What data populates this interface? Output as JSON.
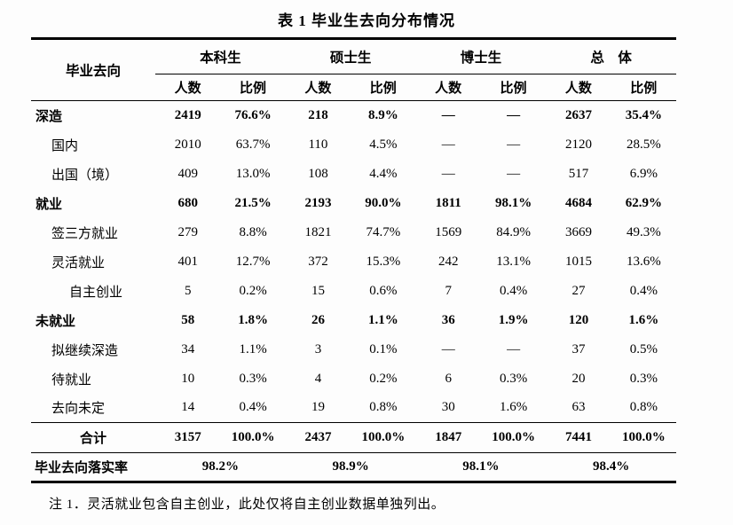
{
  "title": "表 1 毕业生去向分布情况",
  "table": {
    "corner_header": "毕业去向",
    "groups": [
      {
        "label": "本科生"
      },
      {
        "label": "硕士生"
      },
      {
        "label": "博士生"
      },
      {
        "label": "总　体"
      }
    ],
    "subheaders": [
      "人数",
      "比例"
    ],
    "rows": [
      {
        "label": "深造",
        "bold": true,
        "indent": 0,
        "values": [
          "2419",
          "76.6%",
          "218",
          "8.9%",
          "—",
          "—",
          "2637",
          "35.4%"
        ]
      },
      {
        "label": "国内",
        "bold": false,
        "indent": 1,
        "values": [
          "2010",
          "63.7%",
          "110",
          "4.5%",
          "—",
          "—",
          "2120",
          "28.5%"
        ]
      },
      {
        "label": "出国（境）",
        "bold": false,
        "indent": 1,
        "values": [
          "409",
          "13.0%",
          "108",
          "4.4%",
          "—",
          "—",
          "517",
          "6.9%"
        ]
      },
      {
        "label": "就业",
        "bold": true,
        "indent": 0,
        "values": [
          "680",
          "21.5%",
          "2193",
          "90.0%",
          "1811",
          "98.1%",
          "4684",
          "62.9%"
        ]
      },
      {
        "label": "签三方就业",
        "bold": false,
        "indent": 1,
        "values": [
          "279",
          "8.8%",
          "1821",
          "74.7%",
          "1569",
          "84.9%",
          "3669",
          "49.3%"
        ]
      },
      {
        "label": "灵活就业",
        "bold": false,
        "indent": 1,
        "values": [
          "401",
          "12.7%",
          "372",
          "15.3%",
          "242",
          "13.1%",
          "1015",
          "13.6%"
        ]
      },
      {
        "label": "自主创业",
        "bold": false,
        "indent": 2,
        "values": [
          "5",
          "0.2%",
          "15",
          "0.6%",
          "7",
          "0.4%",
          "27",
          "0.4%"
        ]
      },
      {
        "label": "未就业",
        "bold": true,
        "indent": 0,
        "values": [
          "58",
          "1.8%",
          "26",
          "1.1%",
          "36",
          "1.9%",
          "120",
          "1.6%"
        ]
      },
      {
        "label": "拟继续深造",
        "bold": false,
        "indent": 1,
        "values": [
          "34",
          "1.1%",
          "3",
          "0.1%",
          "—",
          "—",
          "37",
          "0.5%"
        ]
      },
      {
        "label": "待就业",
        "bold": false,
        "indent": 1,
        "values": [
          "10",
          "0.3%",
          "4",
          "0.2%",
          "6",
          "0.3%",
          "20",
          "0.3%"
        ]
      },
      {
        "label": "去向未定",
        "bold": false,
        "indent": 1,
        "values": [
          "14",
          "0.4%",
          "19",
          "0.8%",
          "30",
          "1.6%",
          "63",
          "0.8%"
        ]
      }
    ],
    "total_row": {
      "label": "合计",
      "values": [
        "3157",
        "100.0%",
        "2437",
        "100.0%",
        "1847",
        "100.0%",
        "7441",
        "100.0%"
      ]
    },
    "rate_row": {
      "label": "毕业去向落实率",
      "values": [
        "98.2%",
        "98.9%",
        "98.1%",
        "98.4%"
      ]
    }
  },
  "note": "注 1．灵活就业包含自主创业，此处仅将自主创业数据单独列出。"
}
